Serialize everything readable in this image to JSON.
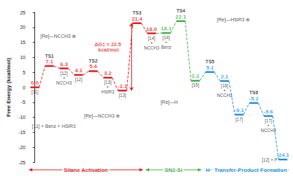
{
  "chart_data": {
    "type": "line",
    "y_label": "Free Energy (kcal/mol)",
    "ylim": [
      -25,
      25
    ],
    "yticks": [
      -25,
      -20,
      -15,
      -10,
      -5,
      0,
      5,
      10,
      15,
      20,
      25
    ],
    "grid": false,
    "data_labels": true,
    "levels": [
      {
        "name": null,
        "species": "[11]",
        "value": 0,
        "value_label": "0.0",
        "color": "#e41a1c"
      },
      {
        "name": "TS1",
        "species": null,
        "value": 7.1,
        "color": "#e41a1c"
      },
      {
        "name": null,
        "species": "[12] + NCCH3",
        "value": 6.3,
        "color": "#e41a1c"
      },
      {
        "name": null,
        "species": "[12]",
        "value": 4.1,
        "color": "#e41a1c"
      },
      {
        "name": "TS2",
        "species": null,
        "value": 5.4,
        "color": "#e41a1c"
      },
      {
        "name": null,
        "species": "[13] + HSiR3",
        "value": 3.2,
        "color": "#e41a1c"
      },
      {
        "name": null,
        "species": "[13]",
        "value": -1.1,
        "color": "#e41a1c"
      },
      {
        "name": "TS3",
        "species": null,
        "value": 21.4,
        "color": "#e41a1c"
      },
      {
        "name": null,
        "species": "[14] + NCCH3",
        "value": 18.0,
        "value_label": "18.0",
        "color": "#e41a1c"
      },
      {
        "name": null,
        "species": "[14] + Benz",
        "value": 18.1,
        "color": "#3fae49"
      },
      {
        "name": "TS4",
        "species": null,
        "value": 22.1,
        "color": "#3fae49"
      },
      {
        "name": null,
        "species": "[15]",
        "value": 2.2,
        "color": "#3fae49"
      },
      {
        "name": "TS5",
        "species": null,
        "value": 5.1,
        "color": "#1e90d6"
      },
      {
        "name": null,
        "species": "[16] + NCCH3",
        "value": 2.1,
        "color": "#1e90d6"
      },
      {
        "name": null,
        "species": "[17]",
        "value": -9.1,
        "color": "#1e90d6"
      },
      {
        "name": "TS6",
        "species": null,
        "value": -5.2,
        "color": "#1e90d6"
      },
      {
        "name": null,
        "species": "[17] + NCCH3",
        "value": -9.6,
        "color": "#1e90d6"
      },
      {
        "name": null,
        "species": "[12] + P",
        "value": -24.1,
        "color": "#1e90d6"
      }
    ],
    "annotations": [
      {
        "text": "ΔG‡ = 22.5 kcal/mol",
        "color": "#e41a1c"
      },
      {
        "text": "[Re]—NCCH3 ⊕",
        "color": "#222222"
      },
      {
        "text": "[11] + Benz + HSiR3",
        "color": "#222222"
      },
      {
        "text": "[Re]—NCCH3 ⊕",
        "color": "#222222"
      },
      {
        "text": "[Re]—HSiR3 ⊕",
        "color": "#222222"
      },
      {
        "text": "[Re]—H",
        "color": "#222222"
      }
    ],
    "sections": [
      {
        "text": "Silane Activation",
        "color": "#e41a1c"
      },
      {
        "text": "SN2-Si",
        "color": "#3fae49"
      },
      {
        "text": "H⁻ Transfer-Product Formation",
        "color": "#1e90d6"
      }
    ]
  }
}
